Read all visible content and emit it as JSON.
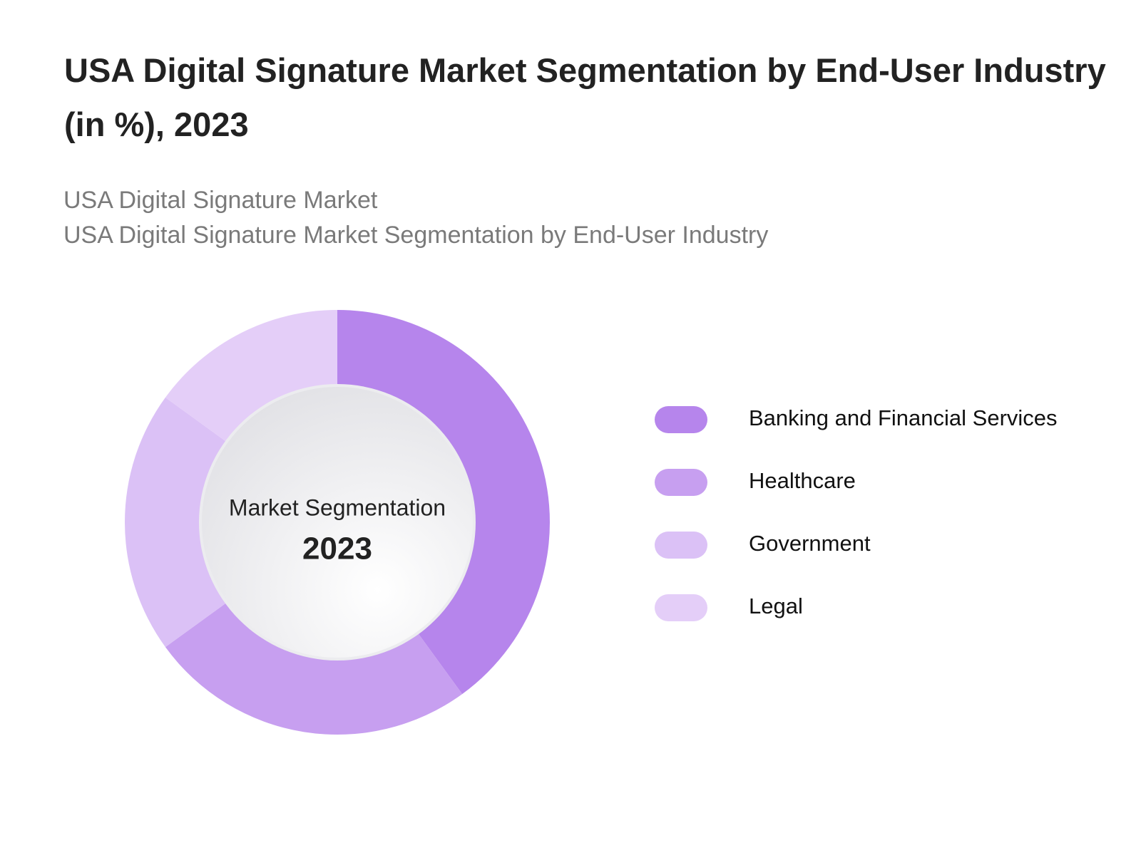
{
  "chart_data": {
    "type": "donut",
    "title": "USA Digital Signature Market Segmentation by End-User Industry (in %), 2023",
    "subtitle": [
      "USA Digital Signature Market",
      "USA Digital Signature Market Segmentation by End-User Industry"
    ],
    "center_label": "Market Segmentation",
    "center_value": "2023",
    "categories": [
      "Banking and Financial Services",
      "Healthcare",
      "Government",
      "Legal"
    ],
    "values": [
      40,
      25,
      20,
      15
    ],
    "colors": [
      "#b685ec",
      "#c79ff0",
      "#dbc1f6",
      "#e4cef8"
    ]
  }
}
